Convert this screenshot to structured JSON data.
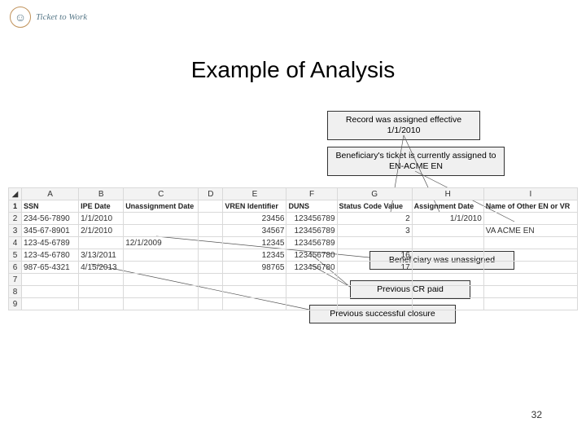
{
  "logo": {
    "text": "Ticket to Work"
  },
  "title": "Example of Analysis",
  "callouts": {
    "c1": "Record was assigned effective 1/1/2010",
    "c2": "Beneficiary's ticket is currently assigned to EN-ACME EN",
    "c3": "Beneficiary was unassigned",
    "c4": "Previous CR paid",
    "c5": "Previous successful closure"
  },
  "spreadsheet": {
    "column_letters": [
      "A",
      "B",
      "C",
      "D",
      "E",
      "F",
      "G",
      "H",
      "I"
    ],
    "headers": [
      "SSN",
      "IPE Date",
      "Unassignment Date",
      "",
      "VREN Identifier",
      "DUNS",
      "Status Code Value",
      "Assignment Date",
      "Name of Other EN or VR"
    ],
    "rows": [
      [
        "234-56-7890",
        "1/1/2010",
        "",
        "",
        "23456",
        "123456789",
        "2",
        "1/1/2010",
        ""
      ],
      [
        "345-67-8901",
        "2/1/2010",
        "",
        "",
        "34567",
        "123456789",
        "3",
        "",
        "VA ACME EN"
      ],
      [
        "123-45-6789",
        "",
        "12/1/2009",
        "",
        "12345",
        "123456789",
        "",
        "",
        ""
      ],
      [
        "123-45-6780",
        "3/13/2011",
        "",
        "",
        "12345",
        "123456780",
        "16",
        "",
        ""
      ],
      [
        "987-65-4321",
        "4/15/2013",
        "",
        "",
        "98765",
        "123456780",
        "17",
        "",
        ""
      ],
      [
        "",
        "",
        "",
        "",
        "",
        "",
        "",
        "",
        ""
      ],
      [
        "",
        "",
        "",
        "",
        "",
        "",
        "",
        "",
        ""
      ],
      [
        "",
        "",
        "",
        "",
        "",
        "",
        "",
        "",
        ""
      ]
    ]
  },
  "page_number": "32",
  "colors": {
    "callout_bg": "#f0f0f0",
    "callout_border": "#333333",
    "grid": "#d9d9d9",
    "header_bg": "#f3f3f3"
  }
}
